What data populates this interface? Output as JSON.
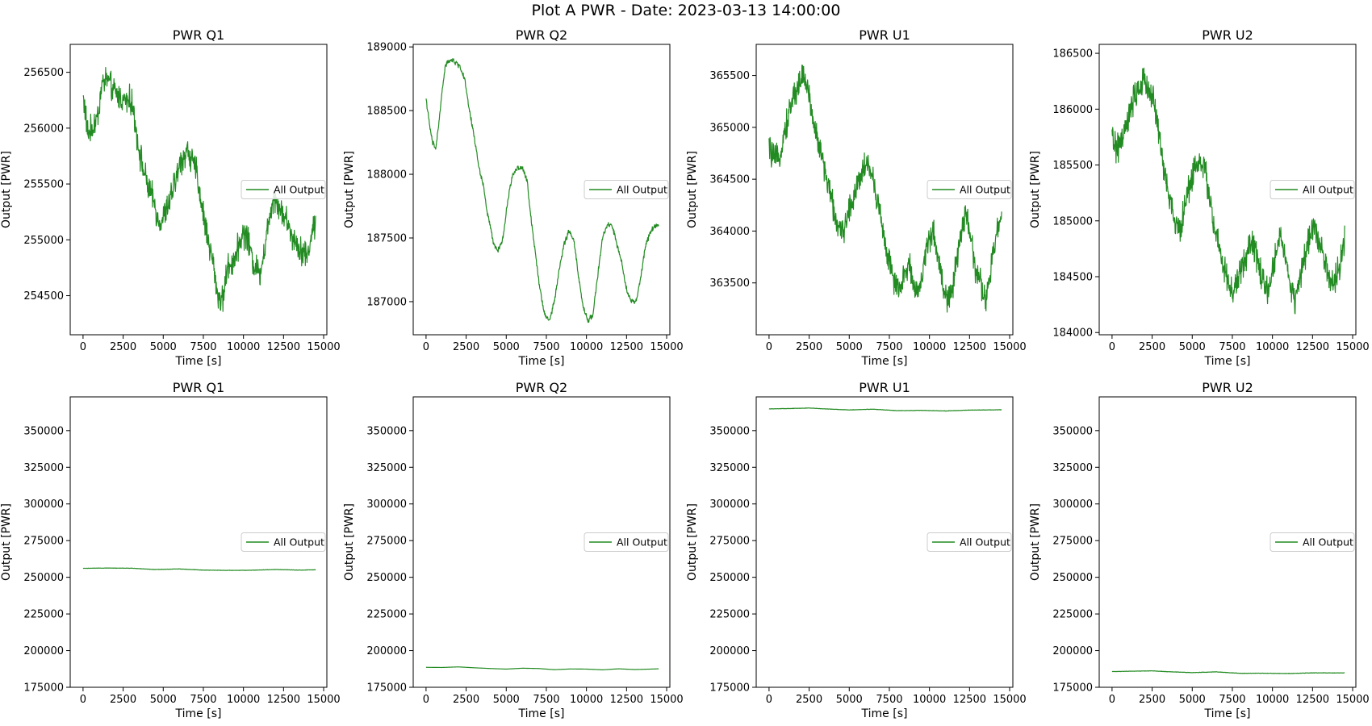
{
  "suptitle": "Plot A PWR - Date: 2023-03-13 14:00:00",
  "colors": {
    "line": "#228b22",
    "axes": "#000000",
    "legend_border": "#cccccc"
  },
  "chart_data": [
    {
      "type": "line",
      "title": "PWR Q1",
      "xlabel": "Time [s]",
      "ylabel": "Output [PWR]",
      "xlim": [
        -800,
        15200
      ],
      "ylim": [
        254150,
        256750
      ],
      "xticks": [
        0,
        2500,
        5000,
        7500,
        10000,
        12500,
        15000
      ],
      "yticks": [
        254500,
        255000,
        255500,
        256000,
        256500
      ],
      "legend": "center-right",
      "grid": false,
      "series": [
        {
          "name": "All Output",
          "noise": 150,
          "x": [
            0,
            300,
            600,
            900,
            1200,
            1500,
            1800,
            2100,
            2500,
            3000,
            3300,
            3500,
            3800,
            4100,
            4400,
            4700,
            5000,
            5300,
            5700,
            6100,
            6500,
            6800,
            7100,
            7400,
            7800,
            8100,
            8400,
            8700,
            9000,
            9300,
            9600,
            9900,
            10200,
            10600,
            11000,
            11300,
            11600,
            11900,
            12200,
            12600,
            13000,
            13400,
            13700,
            14000,
            14300,
            14500
          ],
          "y": [
            256300,
            255950,
            256000,
            256100,
            256400,
            256450,
            256350,
            256300,
            256250,
            256250,
            256000,
            255800,
            255600,
            255450,
            255350,
            255150,
            255200,
            255300,
            255500,
            255700,
            255800,
            255700,
            255600,
            255300,
            255000,
            254800,
            254500,
            254450,
            254750,
            254800,
            254900,
            255050,
            255050,
            254800,
            254700,
            254900,
            255200,
            255400,
            255300,
            255200,
            255050,
            254950,
            254900,
            254850,
            255100,
            255150
          ]
        }
      ]
    },
    {
      "type": "line",
      "title": "PWR Q2",
      "xlabel": "Time [s]",
      "ylabel": "Output [PWR]",
      "xlim": [
        -800,
        15200
      ],
      "ylim": [
        186740,
        189020
      ],
      "xticks": [
        0,
        2500,
        5000,
        7500,
        10000,
        12500,
        15000
      ],
      "yticks": [
        187000,
        187500,
        188000,
        188500,
        189000
      ],
      "legend": "center-right",
      "grid": false,
      "series": [
        {
          "name": "All Output",
          "noise": 25,
          "x": [
            0,
            200,
            400,
            600,
            800,
            1000,
            1200,
            1500,
            1800,
            2100,
            2400,
            2700,
            3000,
            3300,
            3600,
            3800,
            4000,
            4200,
            4500,
            4800,
            5100,
            5400,
            5700,
            6000,
            6300,
            6500,
            6700,
            6900,
            7100,
            7400,
            7700,
            8000,
            8300,
            8600,
            8900,
            9200,
            9500,
            9800,
            10100,
            10400,
            10700,
            11000,
            11300,
            11600,
            11900,
            12200,
            12500,
            12800,
            13100,
            13400,
            13700,
            14000,
            14300,
            14500
          ],
          "y": [
            188600,
            188400,
            188250,
            188200,
            188400,
            188650,
            188850,
            188900,
            188880,
            188850,
            188750,
            188500,
            188300,
            188050,
            187900,
            187700,
            187600,
            187450,
            187400,
            187500,
            187800,
            188000,
            188050,
            188050,
            187950,
            187700,
            187500,
            187300,
            187100,
            186900,
            186850,
            187000,
            187250,
            187450,
            187550,
            187500,
            187200,
            186950,
            186850,
            186900,
            187200,
            187500,
            187600,
            187600,
            187450,
            187300,
            187100,
            187000,
            187000,
            187200,
            187450,
            187550,
            187600,
            187600
          ]
        }
      ]
    },
    {
      "type": "line",
      "title": "PWR U1",
      "xlabel": "Time [s]",
      "ylabel": "Output [PWR]",
      "xlim": [
        -800,
        15200
      ],
      "ylim": [
        363000,
        365800
      ],
      "xticks": [
        0,
        2500,
        5000,
        7500,
        10000,
        12500,
        15000
      ],
      "yticks": [
        363500,
        364000,
        364500,
        365000,
        365500
      ],
      "legend": "center-right",
      "grid": false,
      "series": [
        {
          "name": "All Output",
          "noise": 160,
          "x": [
            0,
            300,
            600,
            900,
            1200,
            1500,
            1800,
            2100,
            2400,
            2700,
            3000,
            3300,
            3600,
            3900,
            4200,
            4500,
            4800,
            5100,
            5400,
            5700,
            6000,
            6300,
            6600,
            6900,
            7200,
            7500,
            7800,
            8100,
            8400,
            8700,
            9000,
            9300,
            9600,
            9900,
            10200,
            10500,
            10800,
            11100,
            11400,
            11700,
            12000,
            12300,
            12600,
            12900,
            13200,
            13500,
            13800,
            14100,
            14400,
            14500
          ],
          "y": [
            364800,
            364700,
            364700,
            364900,
            365100,
            365300,
            365400,
            365500,
            365400,
            365100,
            364900,
            364700,
            364500,
            364300,
            364100,
            363950,
            364100,
            364250,
            364400,
            364550,
            364650,
            364600,
            364400,
            364200,
            363900,
            363700,
            363500,
            363400,
            363550,
            363700,
            363500,
            363400,
            363600,
            363900,
            364000,
            363800,
            363500,
            363350,
            363400,
            363700,
            364000,
            364200,
            363900,
            363600,
            363500,
            363300,
            363600,
            363900,
            364100,
            364200
          ]
        }
      ]
    },
    {
      "type": "line",
      "title": "PWR U2",
      "xlabel": "Time [s]",
      "ylabel": "Output [PWR]",
      "xlim": [
        -800,
        15200
      ],
      "ylim": [
        183980,
        186580
      ],
      "xticks": [
        0,
        2500,
        5000,
        7500,
        10000,
        12500,
        15000
      ],
      "yticks": [
        184000,
        184500,
        185000,
        185500,
        186000,
        186500
      ],
      "legend": "center-right",
      "grid": false,
      "series": [
        {
          "name": "All Output",
          "noise": 160,
          "x": [
            0,
            300,
            600,
            900,
            1200,
            1500,
            1800,
            2100,
            2400,
            2700,
            3000,
            3300,
            3600,
            3900,
            4200,
            4500,
            4800,
            5100,
            5400,
            5700,
            6000,
            6300,
            6600,
            6900,
            7200,
            7500,
            7800,
            8100,
            8400,
            8700,
            9000,
            9300,
            9600,
            9900,
            10200,
            10500,
            10800,
            11100,
            11400,
            11700,
            12000,
            12300,
            12600,
            12900,
            13200,
            13500,
            13800,
            14100,
            14400,
            14500
          ],
          "y": [
            185750,
            185650,
            185700,
            185850,
            186000,
            186150,
            186200,
            186250,
            186150,
            186000,
            185700,
            185400,
            185200,
            185000,
            184900,
            185100,
            185300,
            185450,
            185550,
            185500,
            185300,
            185000,
            184800,
            184600,
            184450,
            184350,
            184450,
            184600,
            184700,
            184800,
            184700,
            184500,
            184350,
            184450,
            184700,
            184900,
            184700,
            184400,
            184300,
            184450,
            184650,
            184850,
            184950,
            184850,
            184700,
            184500,
            184400,
            184550,
            184750,
            184850
          ]
        }
      ]
    },
    {
      "type": "line",
      "title": "PWR Q1",
      "xlabel": "Time [s]",
      "ylabel": "Output [PWR]",
      "xlim": [
        -800,
        15200
      ],
      "ylim": [
        175000,
        373000
      ],
      "xticks": [
        0,
        2500,
        5000,
        7500,
        10000,
        12500,
        15000
      ],
      "yticks": [
        175000,
        200000,
        225000,
        250000,
        275000,
        300000,
        325000,
        350000
      ],
      "legend": "center-right",
      "grid": false,
      "series": [
        {
          "name": "All Output",
          "noise": 150,
          "x": [
            0,
            1500,
            3000,
            4500,
            6000,
            7500,
            9000,
            10500,
            12000,
            13500,
            14500
          ],
          "y": [
            256100,
            256300,
            256200,
            255300,
            255700,
            254900,
            254700,
            254800,
            255300,
            254900,
            255100
          ]
        }
      ]
    },
    {
      "type": "line",
      "title": "PWR Q2",
      "xlabel": "Time [s]",
      "ylabel": "Output [PWR]",
      "xlim": [
        -800,
        15200
      ],
      "ylim": [
        175000,
        373000
      ],
      "xticks": [
        0,
        2500,
        5000,
        7500,
        10000,
        12500,
        15000
      ],
      "yticks": [
        175000,
        200000,
        225000,
        250000,
        275000,
        300000,
        325000,
        350000
      ],
      "legend": "center-right",
      "grid": false,
      "series": [
        {
          "name": "All Output",
          "noise": 30,
          "x": [
            0,
            1000,
            2000,
            3000,
            4000,
            5000,
            6000,
            7000,
            8000,
            9000,
            10000,
            11000,
            12000,
            13000,
            14000,
            14500
          ],
          "y": [
            188600,
            188500,
            188900,
            188300,
            187800,
            187400,
            188000,
            187800,
            187000,
            187500,
            187400,
            186900,
            187600,
            187100,
            187400,
            187600
          ]
        }
      ]
    },
    {
      "type": "line",
      "title": "PWR U1",
      "xlabel": "Time [s]",
      "ylabel": "Output [PWR]",
      "xlim": [
        -800,
        15200
      ],
      "ylim": [
        175000,
        373000
      ],
      "xticks": [
        0,
        2500,
        5000,
        7500,
        10000,
        12500,
        15000
      ],
      "yticks": [
        175000,
        200000,
        225000,
        250000,
        275000,
        300000,
        325000,
        350000
      ],
      "legend": "center-right",
      "grid": false,
      "series": [
        {
          "name": "All Output",
          "noise": 160,
          "x": [
            0,
            1500,
            2500,
            3500,
            5000,
            6500,
            8000,
            9500,
            11000,
            12500,
            14500
          ],
          "y": [
            364800,
            365100,
            365400,
            364800,
            364100,
            364600,
            363600,
            363800,
            363400,
            364000,
            364200
          ]
        }
      ]
    },
    {
      "type": "line",
      "title": "PWR U2",
      "xlabel": "Time [s]",
      "ylabel": "Output [PWR]",
      "xlim": [
        -800,
        15200
      ],
      "ylim": [
        175000,
        373000
      ],
      "xticks": [
        0,
        2500,
        5000,
        7500,
        10000,
        12500,
        15000
      ],
      "yticks": [
        175000,
        200000,
        225000,
        250000,
        275000,
        300000,
        325000,
        350000
      ],
      "legend": "center-right",
      "grid": false,
      "series": [
        {
          "name": "All Output",
          "noise": 160,
          "x": [
            0,
            1500,
            2500,
            3500,
            5000,
            6500,
            8000,
            9500,
            11000,
            12500,
            14500
          ],
          "y": [
            185700,
            186000,
            186200,
            185600,
            185000,
            185500,
            184500,
            184600,
            184400,
            184800,
            184800
          ]
        }
      ]
    }
  ]
}
